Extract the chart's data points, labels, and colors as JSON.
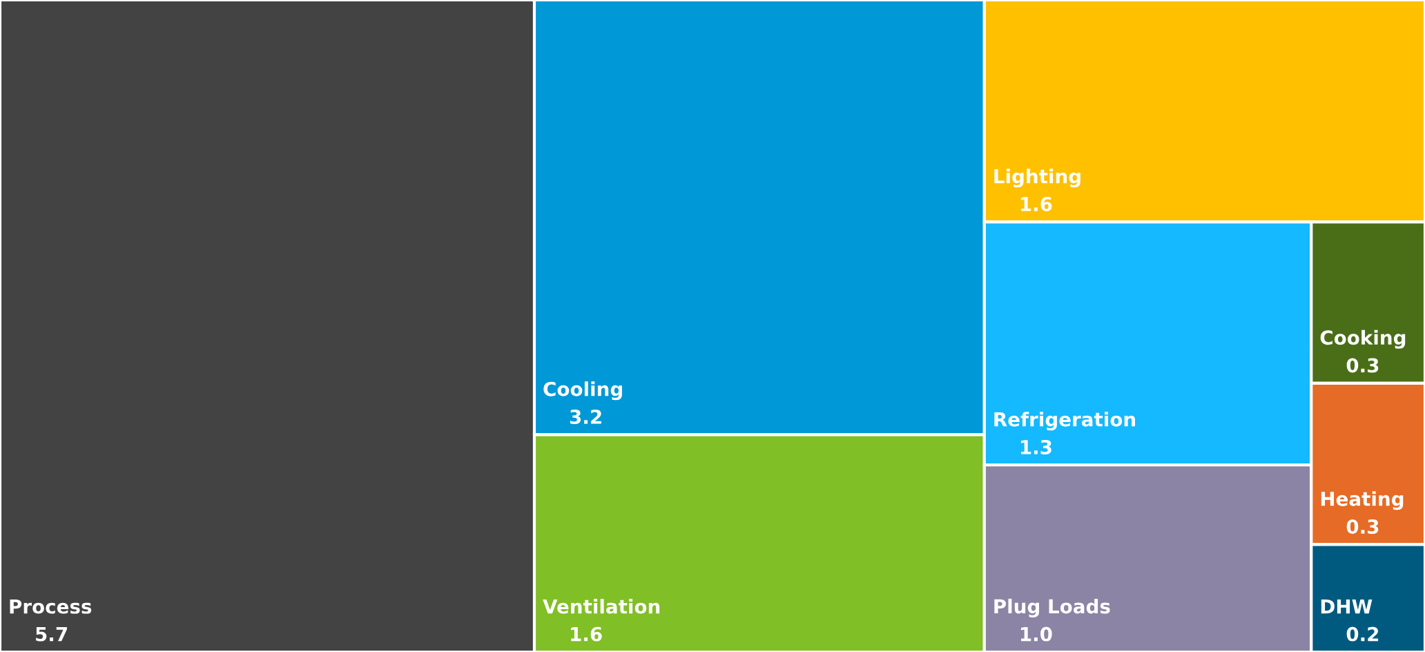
{
  "chart_data": {
    "type": "other",
    "categories": [
      "Process",
      "Cooling",
      "Ventilation",
      "Lighting",
      "Refrigeration",
      "Plug Loads",
      "Cooking",
      "Heating",
      "DHW"
    ],
    "values": [
      5.7,
      3.2,
      1.6,
      1.6,
      1.3,
      1.0,
      0.3,
      0.3,
      0.2
    ],
    "value_labels": [
      "5.7",
      "3.2",
      "1.6",
      "1.6",
      "1.3",
      "1.0",
      "0.3",
      "0.3",
      "0.2"
    ],
    "colors": [
      "#434343",
      "#0098d6",
      "#80bf26",
      "#ffc000",
      "#14b9ff",
      "#8c84a4",
      "#4a6e17",
      "#e66b26",
      "#005a80"
    ]
  }
}
